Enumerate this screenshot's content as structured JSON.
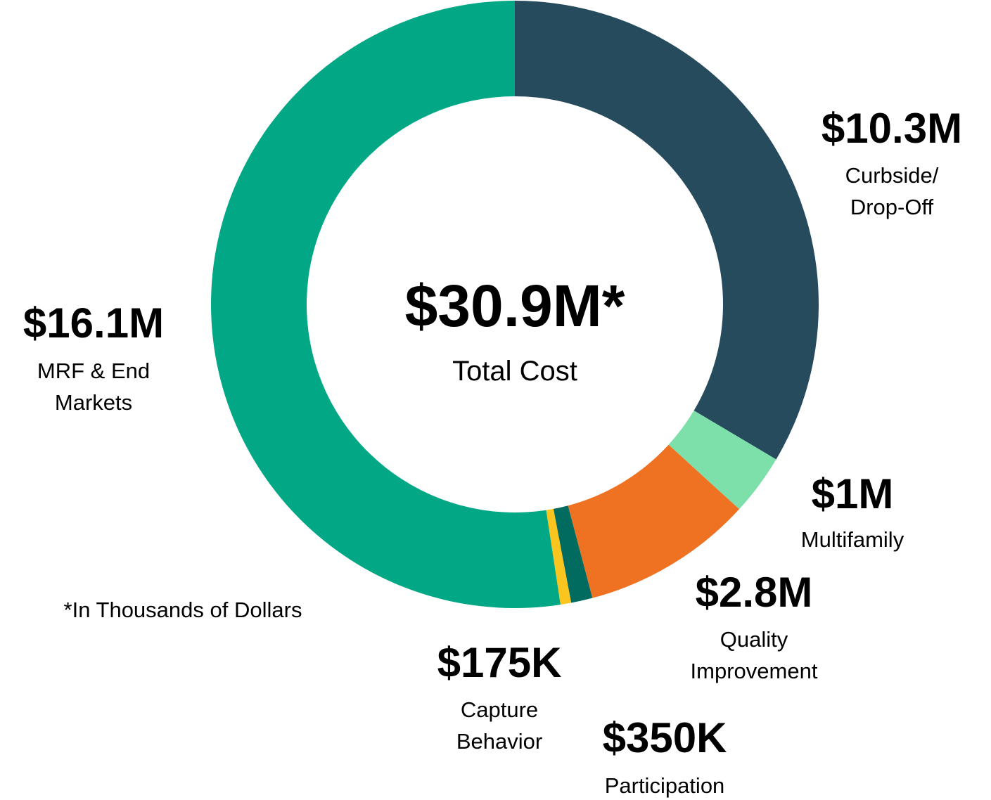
{
  "chart_data": {
    "type": "donut",
    "categories": [
      "Curbside/ Drop-Off",
      "Multifamily",
      "Quality Improvement",
      "Participation",
      "Capture Behavior",
      "MRF & End Markets"
    ],
    "values": [
      10.3,
      1,
      2.8,
      0.35,
      0.175,
      16.1
    ],
    "value_labels": [
      "$10.3M",
      "$1M",
      "$2.8M",
      "$350K",
      "$175K",
      "$16.1M"
    ],
    "colors": [
      "#264b5d",
      "#7ddfaa",
      "#ef7223",
      "#006b5e",
      "#f9c51e",
      "#02a886"
    ],
    "center_value": "$30.9M*",
    "center_label": "Total Cost",
    "note": "*In Thousands of Dollars"
  }
}
